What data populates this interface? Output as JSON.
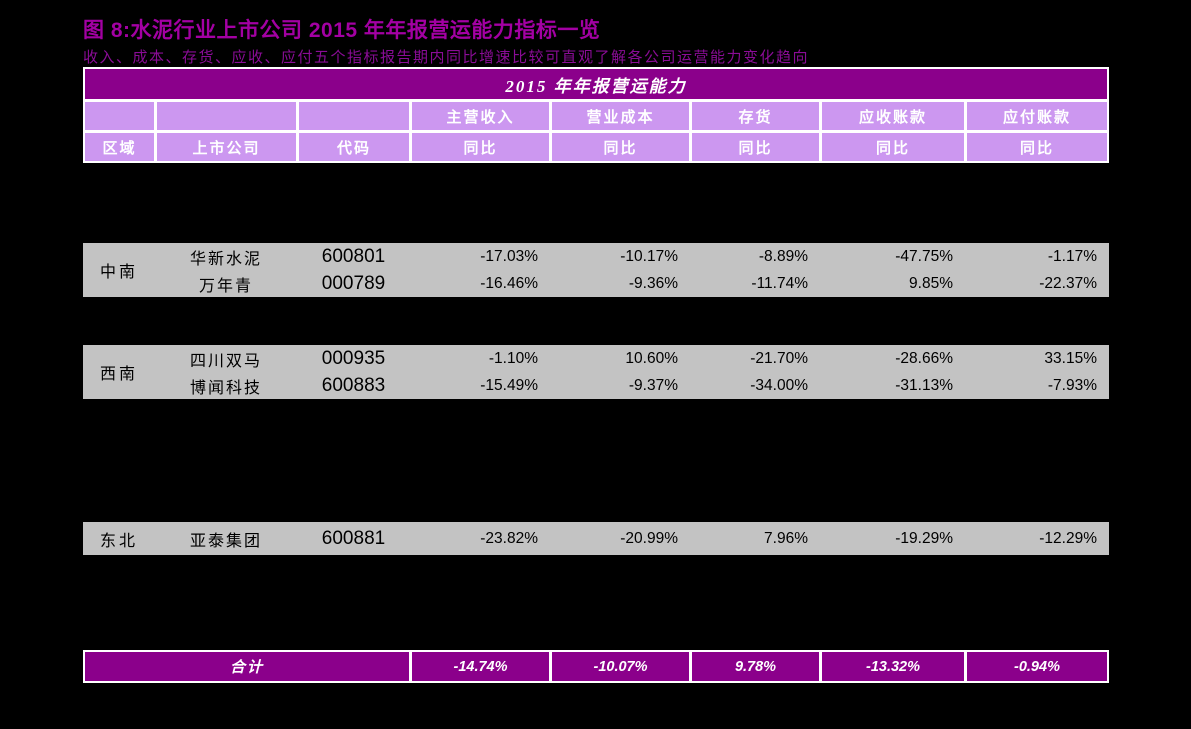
{
  "header": {
    "title": "图 8:水泥行业上市公司 2015 年年报营运能力指标一览",
    "subtitle": "收入、成本、存货、应收、应付五个指标报告期内同比增速比较可直观了解各公司运营能力变化趋向"
  },
  "colors": {
    "page_background": "#000000",
    "title_text": "#A300A3",
    "subtitle_text": "#8A0C96",
    "banner_background": "#8B008B",
    "header_cell_background": "#CC97F0",
    "header_text": "#FFFFFF",
    "row_background": "#C3C3C3",
    "row_text": "#000000",
    "grid_lines": "#FFFFFF"
  },
  "chart_data": {
    "type": "table",
    "title": "2015 年年报营运能力",
    "key_columns": [
      "区域",
      "上市公司",
      "代码"
    ],
    "metric_columns": [
      "主营收入",
      "营业成本",
      "存货",
      "应收账款",
      "应付账款"
    ],
    "metric_subheader": "同比",
    "groups": [
      {
        "region": "中南",
        "rows": [
          {
            "company": "华新水泥",
            "code": "600801",
            "values": [
              "-17.03%",
              "-10.17%",
              "-8.89%",
              "-47.75%",
              "-1.17%"
            ]
          },
          {
            "company": "万年青",
            "code": "000789",
            "values": [
              "-16.46%",
              "-9.36%",
              "-11.74%",
              "9.85%",
              "-22.37%"
            ]
          }
        ]
      },
      {
        "region": "西南",
        "rows": [
          {
            "company": "四川双马",
            "code": "000935",
            "values": [
              "-1.10%",
              "10.60%",
              "-21.70%",
              "-28.66%",
              "33.15%"
            ]
          },
          {
            "company": "博闻科技",
            "code": "600883",
            "values": [
              "-15.49%",
              "-9.37%",
              "-34.00%",
              "-31.13%",
              "-7.93%"
            ]
          }
        ]
      },
      {
        "region": "东北",
        "rows": [
          {
            "company": "亚泰集团",
            "code": "600881",
            "values": [
              "-23.82%",
              "-20.99%",
              "7.96%",
              "-19.29%",
              "-12.29%"
            ]
          }
        ]
      }
    ],
    "footer": {
      "label": "合计",
      "values": [
        "-14.74%",
        "-10.07%",
        "9.78%",
        "-13.32%",
        "-0.94%"
      ]
    }
  }
}
